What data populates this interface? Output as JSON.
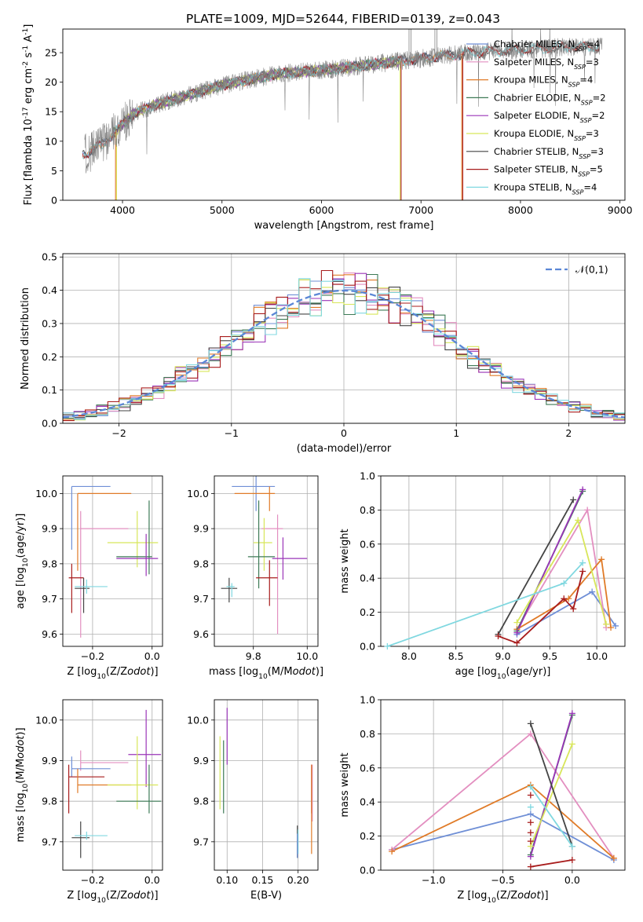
{
  "title": "PLATE=1009, MJD=52644, FIBERID=0139, z=0.043",
  "colors": {
    "Chabrier MILES": "#6f8fd6",
    "Salpeter MILES": "#e38fc0",
    "Kroupa MILES": "#e07b28",
    "Chabrier ELODIE": "#3d7a56",
    "Salpeter ELODIE": "#9a35b8",
    "Kroupa ELODIE": "#d8e65a",
    "Chabrier STELIB": "#444444",
    "Salpeter STELIB": "#a81c1c",
    "Kroupa STELIB": "#80d8e0"
  },
  "chart_data": [
    {
      "id": "spectrum",
      "type": "line",
      "xlabel": "wavelength [Angstrom, rest frame]",
      "ylabel": "Flux [f$_\\lambda 10^{-17}$ erg cm$^{-2}$ s$^{-1}$ A$^{-1}$]",
      "xlim": [
        3400,
        9050
      ],
      "ylim": [
        0,
        29
      ],
      "xticks": [
        4000,
        5000,
        6000,
        7000,
        8000,
        9000
      ],
      "yticks": [
        0,
        5,
        10,
        15,
        20,
        25
      ],
      "legend": "upper-right",
      "data_color": "#808080",
      "series": [
        {
          "name": "Chabrier MILES, N$_{SSP}$=4",
          "range": [
            3600,
            7400
          ]
        },
        {
          "name": "Salpeter MILES, N$_{SSP}$=3",
          "range": [
            3600,
            7400
          ]
        },
        {
          "name": "Kroupa MILES, N$_{SSP}$=4",
          "range": [
            3600,
            7420
          ]
        },
        {
          "name": "Chabrier ELODIE, N$_{SSP}$=2",
          "range": [
            3900,
            6800
          ]
        },
        {
          "name": "Salpeter ELODIE, N$_{SSP}$=2",
          "range": [
            3900,
            6800
          ]
        },
        {
          "name": "Kroupa ELODIE, N$_{SSP}$=3",
          "range": [
            3900,
            6800
          ]
        },
        {
          "name": "Chabrier STELIB, N$_{SSP}$=3",
          "range": [
            3600,
            8800
          ]
        },
        {
          "name": "Salpeter STELIB, N$_{SSP}$=5",
          "range": [
            3600,
            8800
          ]
        },
        {
          "name": "Kroupa STELIB, N$_{SSP}$=4",
          "range": [
            3600,
            8800
          ]
        }
      ],
      "continuum": [
        [
          3650,
          8
        ],
        [
          3800,
          9.5
        ],
        [
          3950,
          12
        ],
        [
          4100,
          14.5
        ],
        [
          4300,
          16
        ],
        [
          4500,
          17
        ],
        [
          4800,
          18.5
        ],
        [
          5000,
          19.5
        ],
        [
          5300,
          20.5
        ],
        [
          5600,
          21.5
        ],
        [
          6000,
          22
        ],
        [
          6500,
          23
        ],
        [
          7000,
          24
        ],
        [
          7500,
          25
        ],
        [
          8000,
          25.5
        ],
        [
          8500,
          26
        ],
        [
          8800,
          26
        ]
      ]
    },
    {
      "id": "residuals",
      "type": "step",
      "xlabel": "(data-model)/error",
      "ylabel": "Normed distribution",
      "xlim": [
        -2.5,
        2.5
      ],
      "ylim": [
        0,
        0.51
      ],
      "xticks": [
        -2,
        -1,
        0,
        1,
        2
      ],
      "yticks": [
        0.0,
        0.1,
        0.2,
        0.3,
        0.4,
        0.5
      ],
      "legend": "upper-right",
      "normal_label": "$\\mathcal{N}(0,1)$",
      "normal_color": "#5b87d6",
      "bin_width": 0.1
    },
    {
      "id": "age-vs-z",
      "type": "errorbar",
      "xlabel": "Z [log$_{10}$(Z/Z$_\\odot$)]",
      "ylabel": "age  [log$_{10}$(age/yr)]",
      "xlim": [
        -0.3,
        0.035
      ],
      "ylim": [
        9.565,
        10.05
      ],
      "xticks": [
        -0.2,
        0.0
      ],
      "yticks": [
        9.6,
        9.7,
        9.8,
        9.9,
        10.0
      ],
      "points": [
        {
          "model": "Chabrier MILES",
          "x": -0.27,
          "xerr": [
            0,
            0.13
          ],
          "y": 10.02,
          "yerr": [
            0.18,
            0
          ]
        },
        {
          "model": "Kroupa MILES",
          "x": -0.25,
          "xerr": [
            0,
            0.18
          ],
          "y": 10.0,
          "yerr": [
            0.22,
            0
          ]
        },
        {
          "model": "Salpeter MILES",
          "x": -0.24,
          "xerr": [
            0,
            0.16
          ],
          "y": 9.9,
          "yerr": [
            0.31,
            0.05
          ]
        },
        {
          "model": "Kroupa ELODIE",
          "x": -0.05,
          "xerr": [
            0.1,
            0.07
          ],
          "y": 9.86,
          "yerr": [
            0.07,
            0.09
          ]
        },
        {
          "model": "Chabrier ELODIE",
          "x": -0.01,
          "xerr": [
            0.11,
            0.01
          ],
          "y": 9.82,
          "yerr": [
            0.05,
            0.16
          ]
        },
        {
          "model": "Salpeter ELODIE",
          "x": -0.02,
          "xerr": [
            0.1,
            0.04
          ],
          "y": 9.815,
          "yerr": [
            0.05,
            0.07
          ]
        },
        {
          "model": "Salpeter STELIB",
          "x": -0.27,
          "xerr": [
            0.01,
            0.04
          ],
          "y": 9.76,
          "yerr": [
            0.1,
            0.04
          ]
        },
        {
          "model": "Chabrier STELIB",
          "x": -0.23,
          "xerr": [
            0.03,
            0.02
          ],
          "y": 9.73,
          "yerr": [
            0.07,
            0.03
          ]
        },
        {
          "model": "Kroupa STELIB",
          "x": -0.22,
          "xerr": [
            0.04,
            0.07
          ],
          "y": 9.735,
          "yerr": [
            0.02,
            0.02
          ]
        }
      ]
    },
    {
      "id": "age-vs-mass",
      "type": "errorbar",
      "xlabel": "mass [log$_{10}$(M/M$_\\odot$)]",
      "ylabel": "",
      "xlim": [
        9.655,
        10.04
      ],
      "ylim": [
        9.565,
        10.05
      ],
      "xticks": [
        9.8,
        10.0
      ],
      "yticks": [
        9.6,
        9.7,
        9.8,
        9.9,
        10.0
      ],
      "points": [
        {
          "model": "Chabrier MILES",
          "x": 9.81,
          "xerr": [
            0.09,
            0.07
          ],
          "y": 10.02,
          "yerr": [
            0.07,
            0.03
          ]
        },
        {
          "model": "Kroupa MILES",
          "x": 9.86,
          "xerr": [
            0.13,
            0.02
          ],
          "y": 10.0,
          "yerr": [
            0.05,
            0.02
          ]
        },
        {
          "model": "Salpeter MILES",
          "x": 9.89,
          "xerr": [
            0.06,
            0.02
          ],
          "y": 9.9,
          "yerr": [
            0.3,
            0.04
          ]
        },
        {
          "model": "Kroupa ELODIE",
          "x": 9.84,
          "xerr": [
            0.04,
            0.03
          ],
          "y": 9.86,
          "yerr": [
            0.08,
            0.07
          ]
        },
        {
          "model": "Chabrier ELODIE",
          "x": 9.82,
          "xerr": [
            0.04,
            0.06
          ],
          "y": 9.82,
          "yerr": [
            0.09,
            0.16
          ]
        },
        {
          "model": "Salpeter ELODIE",
          "x": 9.91,
          "xerr": [
            0.04,
            0.09
          ],
          "y": 9.815,
          "yerr": [
            0.06,
            0.06
          ]
        },
        {
          "model": "Salpeter STELIB",
          "x": 9.86,
          "xerr": [
            0.05,
            0.03
          ],
          "y": 9.76,
          "yerr": [
            0.08,
            0.05
          ]
        },
        {
          "model": "Chabrier STELIB",
          "x": 9.71,
          "xerr": [
            0.03,
            0.03
          ],
          "y": 9.73,
          "yerr": [
            0.04,
            0.03
          ]
        },
        {
          "model": "Kroupa STELIB",
          "x": 9.72,
          "xerr": [
            0.02,
            0.01
          ],
          "y": 9.735,
          "yerr": [
            0.03,
            0.01
          ]
        }
      ]
    },
    {
      "id": "weight-vs-age",
      "type": "line",
      "xlabel": "age  [log$_{10}$(age/yr)]",
      "ylabel": "mass weight",
      "xlim": [
        7.7,
        10.3
      ],
      "ylim": [
        0,
        1.0
      ],
      "xticks": [
        8.0,
        8.5,
        9.0,
        9.5,
        10.0
      ],
      "yticks": [
        0.0,
        0.2,
        0.4,
        0.6,
        0.8,
        1.0
      ],
      "series": [
        {
          "model": "Chabrier MILES",
          "points": [
            [
              9.15,
              0.07
            ],
            [
              9.95,
              0.32
            ],
            [
              10.2,
              0.12
            ]
          ]
        },
        {
          "model": "Salpeter MILES",
          "points": [
            [
              9.15,
              0.1
            ],
            [
              9.9,
              0.8
            ],
            [
              10.1,
              0.11
            ]
          ]
        },
        {
          "model": "Kroupa MILES",
          "points": [
            [
              9.15,
              0.1
            ],
            [
              9.7,
              0.28
            ],
            [
              10.05,
              0.51
            ],
            [
              10.15,
              0.11
            ]
          ]
        },
        {
          "model": "Chabrier ELODIE",
          "points": [
            [
              9.15,
              0.09
            ],
            [
              9.85,
              0.91
            ]
          ]
        },
        {
          "model": "Salpeter ELODIE",
          "points": [
            [
              9.15,
              0.08
            ],
            [
              9.85,
              0.92
            ]
          ]
        },
        {
          "model": "Kroupa ELODIE",
          "points": [
            [
              9.15,
              0.14
            ],
            [
              9.8,
              0.74
            ],
            [
              10.1,
              0.13
            ]
          ]
        },
        {
          "model": "Chabrier STELIB",
          "points": [
            [
              8.95,
              0.07
            ],
            [
              9.75,
              0.86
            ]
          ]
        },
        {
          "model": "Salpeter STELIB",
          "points": [
            [
              8.95,
              0.06
            ],
            [
              9.15,
              0.02
            ],
            [
              9.65,
              0.28
            ],
            [
              9.75,
              0.22
            ],
            [
              9.85,
              0.44
            ]
          ]
        },
        {
          "model": "Kroupa STELIB",
          "points": [
            [
              7.77,
              0.0
            ],
            [
              9.65,
              0.37
            ],
            [
              9.85,
              0.49
            ]
          ]
        }
      ]
    },
    {
      "id": "mass-vs-z",
      "type": "errorbar",
      "xlabel": "Z [log$_{10}$(Z/Z$_\\odot$)]",
      "ylabel": "mass [log$_{10}$(M/M$_\\odot$)]",
      "xlim": [
        -0.3,
        0.035
      ],
      "ylim": [
        9.63,
        10.05
      ],
      "xticks": [
        -0.2,
        0.0
      ],
      "yticks": [
        9.7,
        9.8,
        9.9,
        10.0
      ],
      "points": [
        {
          "model": "Salpeter ELODIE",
          "x": -0.02,
          "xerr": [
            0.06,
            0.05
          ],
          "y": 9.915,
          "yerr": [
            0.08,
            0.11
          ]
        },
        {
          "model": "Salpeter MILES",
          "x": -0.24,
          "xerr": [
            0,
            0.16
          ],
          "y": 9.895,
          "yerr": [
            0.02,
            0.03
          ]
        },
        {
          "model": "Chabrier MILES",
          "x": -0.27,
          "xerr": [
            0,
            0.13
          ],
          "y": 9.88,
          "yerr": [
            0.02,
            0.03
          ]
        },
        {
          "model": "Salpeter STELIB",
          "x": -0.28,
          "xerr": [
            0,
            0.12
          ],
          "y": 9.86,
          "yerr": [
            0.09,
            0.03
          ]
        },
        {
          "model": "Kroupa MILES",
          "x": -0.25,
          "xerr": [
            0,
            0.18
          ],
          "y": 9.84,
          "yerr": [
            0.02,
            0.04
          ]
        },
        {
          "model": "Kroupa ELODIE",
          "x": -0.05,
          "xerr": [
            0.1,
            0.07
          ],
          "y": 9.84,
          "yerr": [
            0.06,
            0.12
          ]
        },
        {
          "model": "Chabrier ELODIE",
          "x": -0.01,
          "xerr": [
            0.11,
            0.04
          ],
          "y": 9.8,
          "yerr": [
            0.03,
            0.09
          ]
        },
        {
          "model": "Chabrier STELIB",
          "x": -0.24,
          "xerr": [
            0.03,
            0.03
          ],
          "y": 9.71,
          "yerr": [
            0.05,
            0.04
          ]
        },
        {
          "model": "Kroupa STELIB",
          "x": -0.22,
          "xerr": [
            0.04,
            0.07
          ],
          "y": 9.715,
          "yerr": [
            0.01,
            0.01
          ]
        }
      ]
    },
    {
      "id": "mass-vs-ebv",
      "type": "errorbar",
      "xlabel": "E(B-V)",
      "ylabel": "",
      "xlim": [
        0.082,
        0.228
      ],
      "ylim": [
        9.63,
        10.05
      ],
      "xticks": [
        0.1,
        0.15,
        0.2
      ],
      "yticks": [
        9.7,
        9.8,
        9.9,
        10.0
      ],
      "points": [
        {
          "model": "Salpeter ELODIE",
          "x": 0.1,
          "xerr": [
            0,
            0
          ],
          "y": 9.96,
          "yerr": [
            0.07,
            0.07
          ]
        },
        {
          "model": "Kroupa ELODIE",
          "x": 0.09,
          "xerr": [
            0,
            0
          ],
          "y": 9.87,
          "yerr": [
            0.09,
            0.09
          ]
        },
        {
          "model": "Chabrier ELODIE",
          "x": 0.095,
          "xerr": [
            0,
            0
          ],
          "y": 9.86,
          "yerr": [
            0.09,
            0.09
          ]
        },
        {
          "model": "Salpeter STELIB",
          "x": 0.219,
          "xerr": [
            0,
            0
          ],
          "y": 9.83,
          "yerr": [
            0.06,
            0.06
          ]
        },
        {
          "model": "Salpeter MILES",
          "x": 0.22,
          "xerr": [
            0,
            0
          ],
          "y": 9.82,
          "yerr": [
            0.07,
            0.07
          ]
        },
        {
          "model": "Kroupa MILES",
          "x": 0.219,
          "xerr": [
            0,
            0
          ],
          "y": 9.8,
          "yerr": [
            0.13,
            0.09
          ]
        },
        {
          "model": "Chabrier STELIB",
          "x": 0.199,
          "xerr": [
            0,
            0
          ],
          "y": 9.7,
          "yerr": [
            0.04,
            0.04
          ]
        },
        {
          "model": "Kroupa STELIB",
          "x": 0.2,
          "xerr": [
            0,
            0
          ],
          "y": 9.7,
          "yerr": [
            0.03,
            0.03
          ]
        },
        {
          "model": "Chabrier MILES",
          "x": 0.199,
          "xerr": [
            0,
            0
          ],
          "y": 9.69,
          "yerr": [
            0.03,
            0.03
          ]
        }
      ]
    },
    {
      "id": "weight-vs-z",
      "type": "line",
      "xlabel": "Z [log$_{10}$(Z/Z$_\\odot$)]",
      "ylabel": "mass weight",
      "xlim": [
        -1.38,
        0.38
      ],
      "ylim": [
        0,
        1.0
      ],
      "xticks": [
        -1.0,
        -0.5,
        0.0
      ],
      "yticks": [
        0.0,
        0.2,
        0.4,
        0.6,
        0.8,
        1.0
      ],
      "series": [
        {
          "model": "Chabrier MILES",
          "points": [
            [
              -1.3,
              0.12
            ],
            [
              -0.3,
              0.33
            ],
            [
              0.3,
              0.06
            ]
          ]
        },
        {
          "model": "Salpeter MILES",
          "points": [
            [
              -1.3,
              0.12
            ],
            [
              -0.3,
              0.8
            ],
            [
              0.3,
              0.07
            ]
          ]
        },
        {
          "model": "Kroupa MILES",
          "points": [
            [
              -1.3,
              0.11
            ],
            [
              -0.3,
              0.5
            ],
            [
              0.3,
              0.07
            ]
          ]
        },
        {
          "model": "Chabrier ELODIE",
          "points": [
            [
              -0.3,
              0.09
            ],
            [
              0.0,
              0.91
            ]
          ]
        },
        {
          "model": "Salpeter ELODIE",
          "points": [
            [
              -0.3,
              0.08
            ],
            [
              0.0,
              0.92
            ]
          ]
        },
        {
          "model": "Kroupa ELODIE",
          "points": [
            [
              -0.3,
              0.14
            ],
            [
              0.0,
              0.74
            ]
          ]
        },
        {
          "model": "Chabrier STELIB",
          "points": [
            [
              -0.3,
              0.86
            ],
            [
              0.0,
              0.14
            ]
          ]
        },
        {
          "model": "Salpeter STELIB",
          "points": [
            [
              -0.3,
              0.02
            ],
            [
              0.0,
              0.06
            ]
          ],
          "extra_markers": [
            [
              -0.3,
              0.17
            ],
            [
              -0.3,
              0.22
            ],
            [
              -0.3,
              0.28
            ],
            [
              -0.3,
              0.44
            ]
          ]
        },
        {
          "model": "Kroupa STELIB",
          "points": [
            [
              -0.3,
              0.49
            ],
            [
              0.0,
              0.14
            ]
          ],
          "extra_markers": [
            [
              -0.3,
              0.37
            ]
          ]
        }
      ]
    }
  ]
}
